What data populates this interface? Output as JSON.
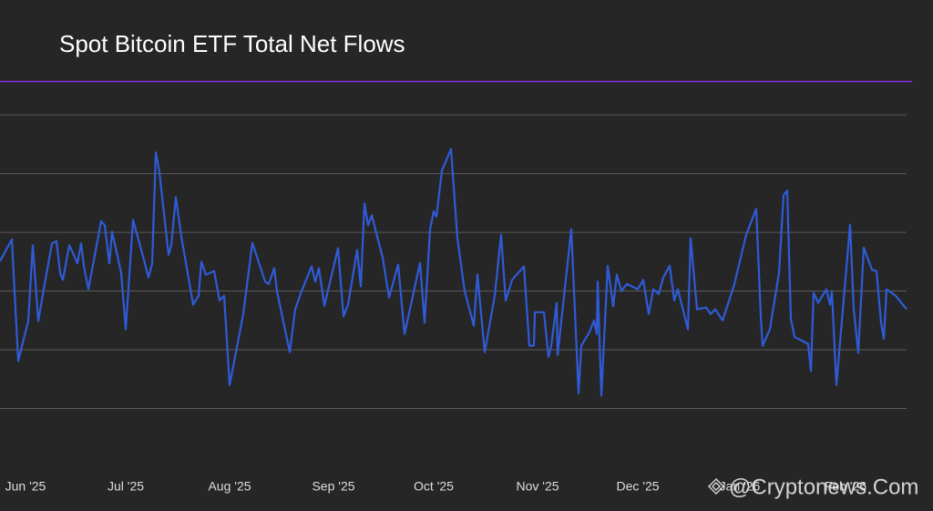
{
  "chart_data": {
    "type": "line",
    "title": "Spot Bitcoin ETF Total Net Flows",
    "watermark": "@Cryptonews.Com",
    "x": [
      0,
      2.6,
      4,
      6.2,
      7.2,
      8.4,
      9.6,
      11.4,
      12.4,
      13.2,
      13.8,
      15.2,
      16,
      17,
      17.8,
      18.4,
      19.4,
      22.2,
      23,
      24,
      24.6,
      26.6,
      27.6,
      29.2,
      31.4,
      32.6,
      33.4,
      34.2,
      35,
      37,
      37.6,
      38.6,
      39.8,
      42.4,
      43.6,
      44.2,
      45.2,
      47,
      48.2,
      49.2,
      50.4,
      53.4,
      55.4,
      58.2,
      59,
      60.2,
      60.8,
      63.6,
      64.8,
      66.2,
      68.4,
      69.2,
      70,
      71.2,
      74.2,
      75.4,
      76.4,
      78.4,
      79.2,
      80,
      80.8,
      81.6,
      84,
      85.4,
      87.4,
      88.8,
      92.2,
      93.2,
      94.4,
      95.2,
      95.8,
      97,
      99,
      100.4,
      102,
      104,
      104.8,
      106.4,
      108.6,
      110,
      111,
      112.4,
      115,
      116.2,
      117.2,
      117.4,
      119.4,
      120.4,
      121,
      122.2,
      122.4,
      125.4,
      127,
      127.6,
      129.4,
      130.4,
      131,
      131.2,
      132,
      133.4,
      134.6,
      135.4,
      136.4,
      137.6,
      140,
      141.2,
      142.4,
      143.4,
      144.6,
      145.6,
      147,
      148,
      148.8,
      151,
      151.6,
      153,
      155,
      156,
      157,
      158.6,
      160.6,
      161.2,
      163.8,
      166,
      167,
      167.4,
      169,
      171,
      172,
      172.8,
      173.6,
      174.4,
      177.4,
      178,
      178.6,
      179.6,
      181.4,
      182.2,
      182.6,
      183.6,
      186.6,
      187.4,
      188.4,
      189.6,
      191.4,
      192.4,
      193.4,
      194,
      194.6,
      196.6,
      199
    ],
    "series": [
      {
        "color": "#2f5bd8",
        "values": [
          0.51,
          0.88,
          -1.19,
          -0.51,
          0.78,
          -0.51,
          0.03,
          0.81,
          0.85,
          0.31,
          0.19,
          0.78,
          0.65,
          0.47,
          0.81,
          0.43,
          0.03,
          1.19,
          1.12,
          0.47,
          1.01,
          0.31,
          -0.65,
          1.21,
          0.59,
          0.23,
          0.47,
          2.36,
          2.02,
          0.62,
          0.78,
          1.6,
          0.93,
          -0.23,
          -0.08,
          0.5,
          0.28,
          0.34,
          -0.16,
          -0.08,
          -1.6,
          -0.39,
          0.82,
          0.16,
          0.12,
          0.39,
          0,
          -1.04,
          -0.31,
          0,
          0.42,
          0.16,
          0.39,
          -0.25,
          0.73,
          -0.43,
          -0.23,
          0.7,
          0.08,
          1.49,
          1.12,
          1.29,
          0.57,
          -0.11,
          0.45,
          -0.73,
          0.48,
          -0.54,
          1.05,
          1.36,
          1.27,
          2.05,
          2.42,
          0.9,
          0,
          -0.59,
          0.28,
          -1.04,
          -0.08,
          0.96,
          -0.16,
          0.19,
          0.42,
          -0.93,
          -0.93,
          -0.36,
          -0.36,
          -1.12,
          -0.93,
          -0.2,
          -1.09,
          1.05,
          -1.74,
          -0.93,
          -0.7,
          -0.5,
          -0.73,
          0.16,
          -1.78,
          0.43,
          -0.26,
          0.28,
          0,
          0.12,
          0.03,
          0.19,
          -0.39,
          0.03,
          -0.05,
          0.23,
          0.43,
          -0.16,
          0.03,
          -0.65,
          0.9,
          -0.31,
          -0.28,
          -0.39,
          -0.31,
          -0.5,
          -0.03,
          0.12,
          0.96,
          1.4,
          -0.43,
          -0.93,
          -0.65,
          0.31,
          1.63,
          1.71,
          -0.47,
          -0.78,
          -0.9,
          -1.36,
          -0.03,
          -0.2,
          0.03,
          -0.23,
          0,
          -1.6,
          1.13,
          -0.31,
          -1.05,
          0.74,
          0.36,
          0.34,
          -0.54,
          -0.81,
          0.03,
          -0.08,
          -0.31
        ]
      }
    ],
    "xlim": [
      0,
      199
    ],
    "xticks": [
      {
        "value": 5.6,
        "label": "Jun '25"
      },
      {
        "value": 27.6,
        "label": "Jul '25"
      },
      {
        "value": 50.4,
        "label": "Aug '25"
      },
      {
        "value": 73.2,
        "label": "Sep '25"
      },
      {
        "value": 95.2,
        "label": "Oct '25"
      },
      {
        "value": 118,
        "label": "Nov '25"
      },
      {
        "value": 140,
        "label": "Dec '25"
      },
      {
        "value": 162.4,
        "label": "Jan '26"
      },
      {
        "value": 185.6,
        "label": "Feb '26"
      }
    ],
    "ylim": [
      -3,
      3.56
    ],
    "yticks": [
      -2,
      -1,
      0,
      1,
      2,
      3
    ],
    "grid": true
  }
}
